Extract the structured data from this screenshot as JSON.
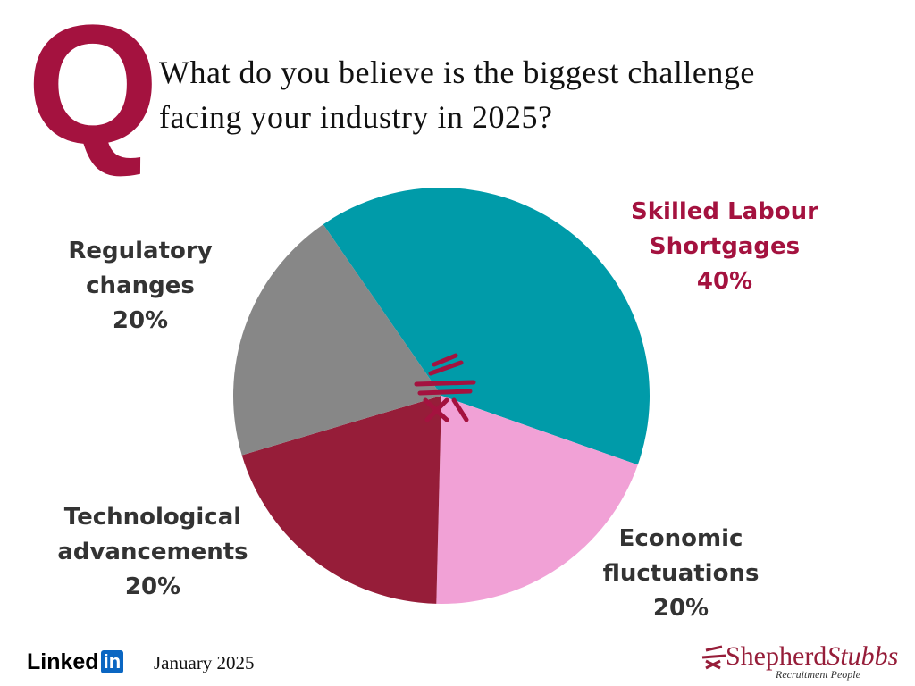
{
  "chart_data": {
    "type": "pie",
    "badge": "Q",
    "title": "What do you believe is the biggest challenge facing your industry in 2025?",
    "categories": [
      "Skilled Labour Shortgages",
      "Economic fluctuations",
      "Technological advancements",
      "Regulatory changes"
    ],
    "values": [
      40,
      20,
      20,
      20
    ],
    "value_labels": [
      "40%",
      "20%",
      "20%",
      "20%"
    ],
    "colors": [
      "#009ba9",
      "#f1a1d6",
      "#961d39",
      "#878787"
    ]
  },
  "footer": {
    "network": "Linked",
    "network_badge": "in",
    "date": "January 2025",
    "brand_first": "Shepherd",
    "brand_second": "Stubbs",
    "brand_tagline": "Recruitment People"
  }
}
